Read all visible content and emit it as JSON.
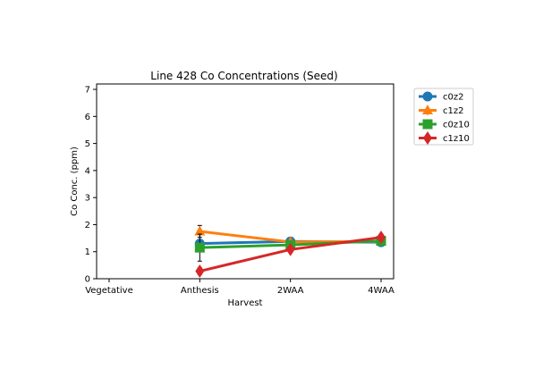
{
  "chart_data": {
    "type": "line",
    "title": "Line 428 Co Concentrations (Seed)",
    "xlabel": "Harvest",
    "ylabel": "Co Conc. (ppm)",
    "categories": [
      "Vegetative",
      "Anthesis",
      "2WAA",
      "4WAA"
    ],
    "ylim": [
      0,
      7.2
    ],
    "yticks": [
      0,
      1,
      2,
      3,
      4,
      5,
      6,
      7
    ],
    "grid": false,
    "legend_position": "outside-top-right",
    "series": [
      {
        "name": "c0z2",
        "color": "#1f77b4",
        "marker": "circle",
        "values": [
          null,
          1.3,
          1.38,
          1.35
        ],
        "errors": [
          null,
          0.12,
          0.06,
          0.08
        ]
      },
      {
        "name": "c1z2",
        "color": "#ff7f0e",
        "marker": "triangle",
        "values": [
          null,
          1.75,
          1.36,
          1.38
        ],
        "errors": [
          null,
          0.22,
          0.05,
          0.1
        ]
      },
      {
        "name": "c0z10",
        "color": "#2ca02c",
        "marker": "square",
        "values": [
          null,
          1.15,
          1.25,
          1.4
        ],
        "errors": [
          null,
          0.5,
          0.08,
          0.1
        ]
      },
      {
        "name": "c1z10",
        "color": "#d62728",
        "marker": "diamond",
        "values": [
          null,
          0.28,
          1.08,
          1.53
        ],
        "errors": [
          null,
          0.12,
          0.07,
          0.12
        ]
      }
    ]
  }
}
